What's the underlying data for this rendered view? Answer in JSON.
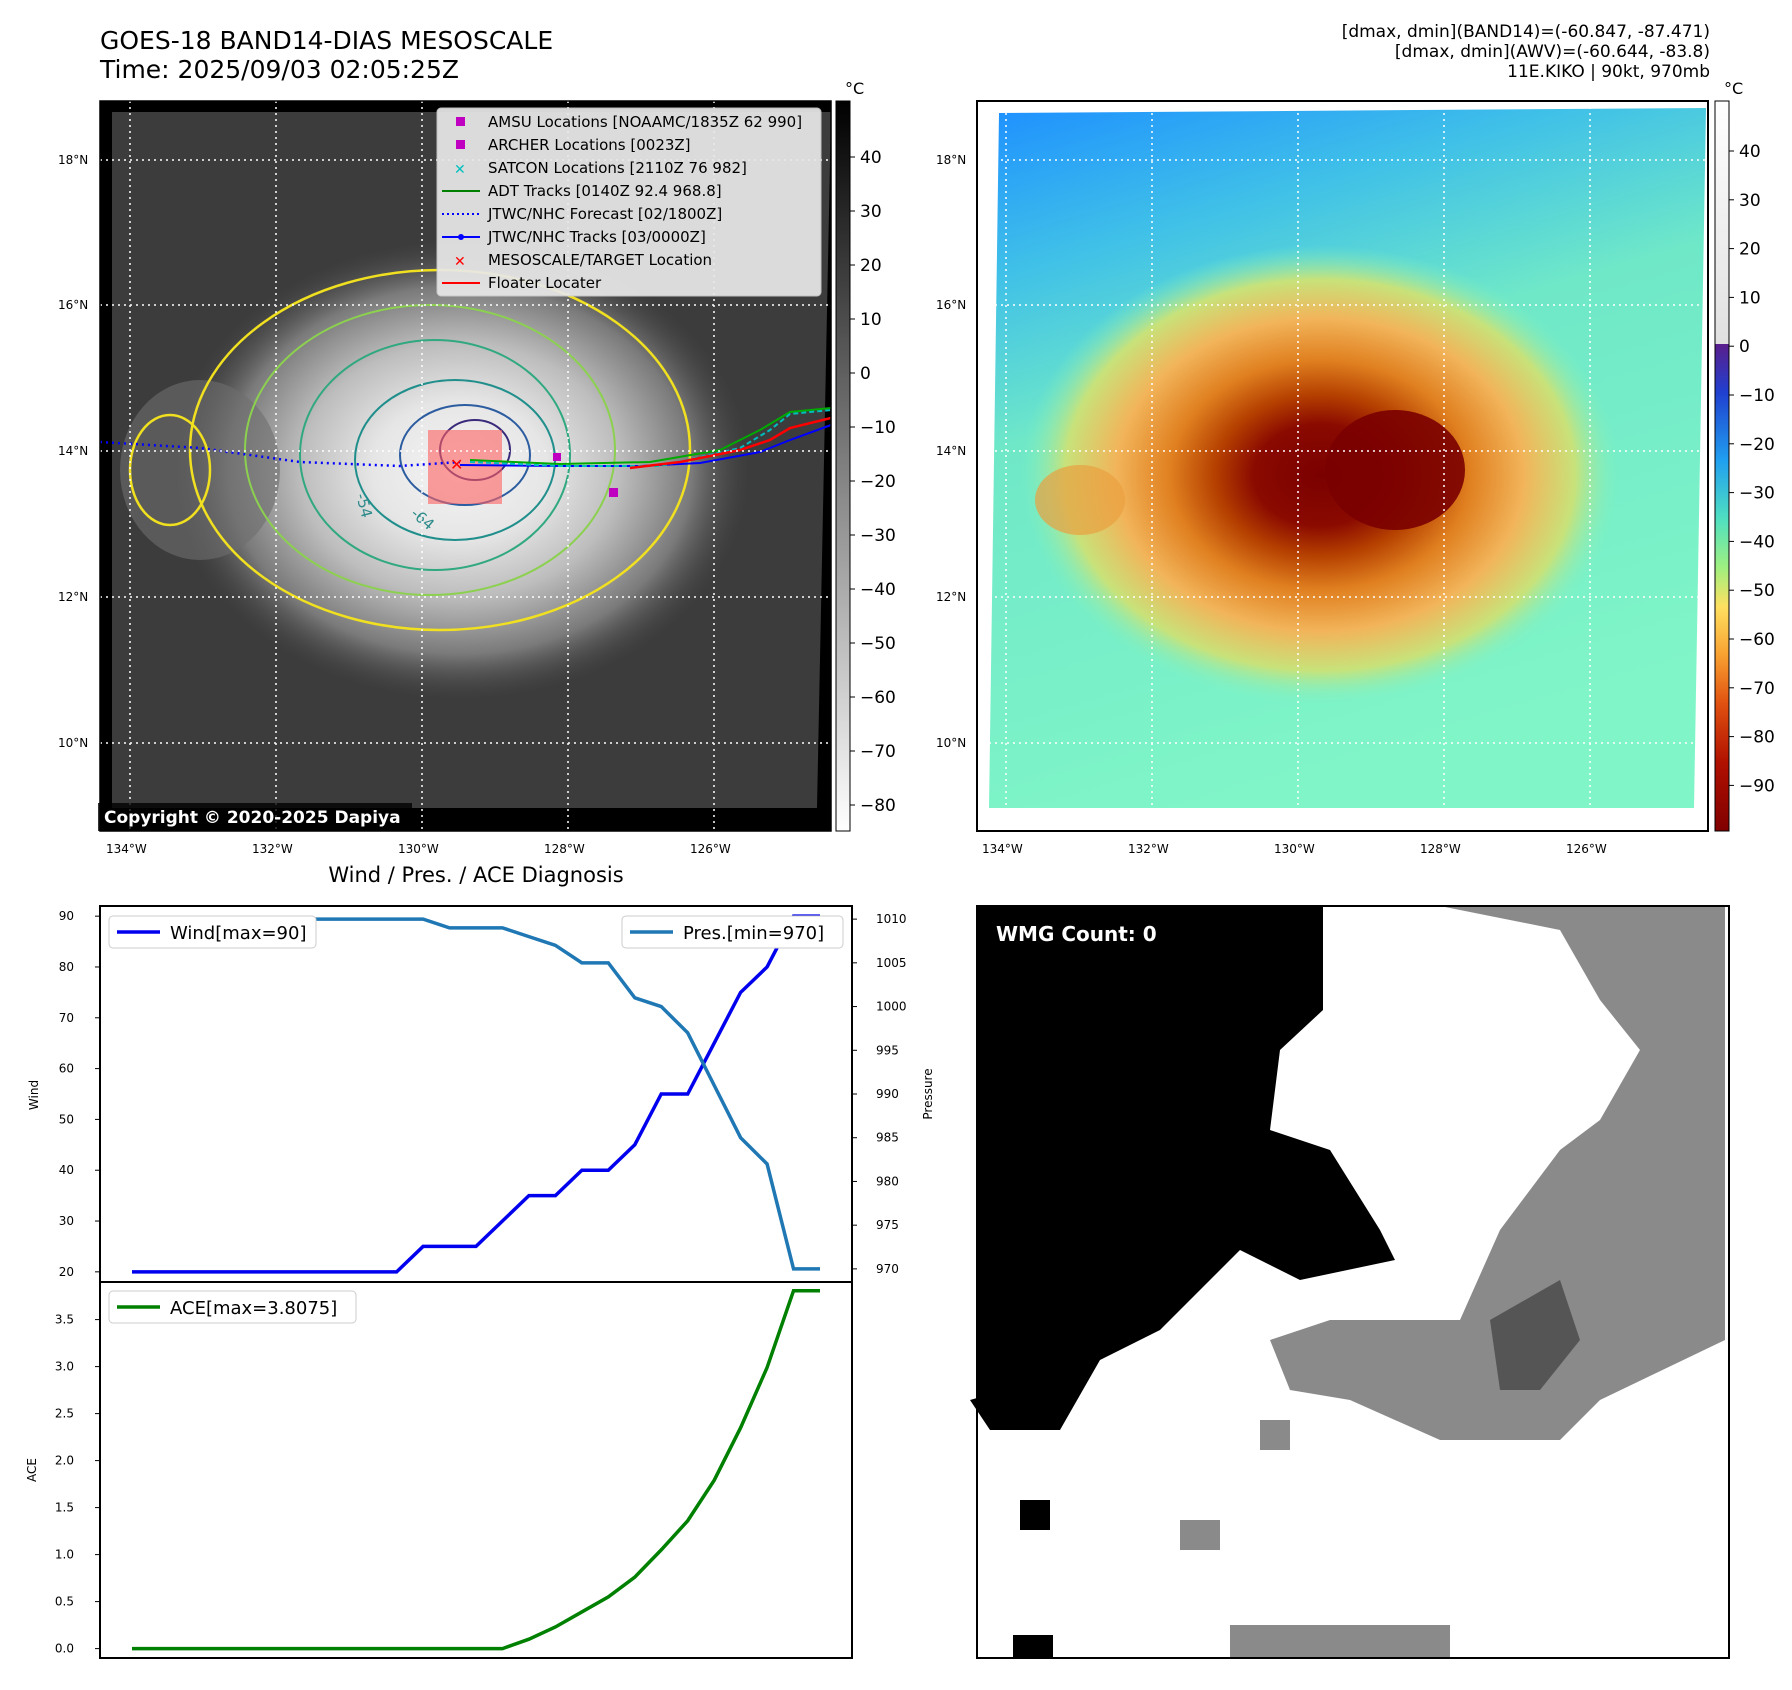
{
  "header": {
    "title_line1": "GOES-18 BAND14-DIAS MESOSCALE",
    "title_line2": "Time: 2025/09/03 02:05:25Z",
    "right_line1": "[dmax, dmin](BAND14)=(-60.847, -87.471)",
    "right_line2": "[dmax, dmin](AWV)=(-60.644, -83.8)",
    "right_line3": "11E.KIKO | 90kt, 970mb"
  },
  "map_ticks": {
    "lat": [
      "18°N",
      "16°N",
      "14°N",
      "12°N",
      "10°N"
    ],
    "lon": [
      "134°W",
      "132°W",
      "130°W",
      "128°W",
      "126°W"
    ]
  },
  "ir_panel": {
    "colorbar_unit": "°C",
    "colorbar_ticks": [
      "40",
      "30",
      "20",
      "10",
      "0",
      "−10",
      "−20",
      "−30",
      "−40",
      "−50",
      "−60",
      "−70",
      "−80"
    ],
    "copyright": "Copyright © 2020-2025 Dapiya",
    "contour_labels": [
      "-54",
      "-64"
    ],
    "legend": [
      {
        "label": "AMSU Locations [NOAAMC/1835Z 62 990]",
        "color": "#c000c0",
        "marker": "square"
      },
      {
        "label": "ARCHER Locations [0023Z]",
        "color": "#c000c0",
        "marker": "square"
      },
      {
        "label": "SATCON Locations [2110Z 76 982]",
        "color": "#00c0c0",
        "marker": "x"
      },
      {
        "label": "ADT Tracks [0140Z 92.4 968.8]",
        "color": "#008000",
        "marker": "line"
      },
      {
        "label": "JTWC/NHC Forecast [02/1800Z]",
        "color": "#0000ff",
        "marker": "dotted"
      },
      {
        "label": "JTWC/NHC Tracks [03/0000Z]",
        "color": "#0000ff",
        "marker": "line-dot"
      },
      {
        "label": "MESOSCALE/TARGET Location",
        "color": "#ff0000",
        "marker": "x"
      },
      {
        "label": "Floater Locater",
        "color": "#ff0000",
        "marker": "line"
      }
    ]
  },
  "awv_panel": {
    "colorbar_unit": "°C",
    "colorbar_ticks": [
      "40",
      "30",
      "20",
      "10",
      "0",
      "−10",
      "−20",
      "−30",
      "−40",
      "−50",
      "−60",
      "−70",
      "−80",
      "−90"
    ]
  },
  "wmg_panel": {
    "label": "WMG Count: 0"
  },
  "chart_data": [
    {
      "type": "line",
      "title": "Wind / Pres. / ACE Diagnosis",
      "ylabel": "Wind",
      "ylabel_right": "Pressure",
      "ylim": [
        18,
        92
      ],
      "ylim_right": [
        968.5,
        1011.5
      ],
      "yticks": [
        20,
        30,
        40,
        50,
        60,
        70,
        80,
        90
      ],
      "yticks_right": [
        970,
        975,
        980,
        985,
        990,
        995,
        1000,
        1005,
        1010
      ],
      "x": [
        0,
        1,
        2,
        3,
        4,
        5,
        6,
        7,
        8,
        9,
        10,
        11,
        12,
        13,
        14,
        15,
        16,
        17,
        18,
        19,
        20,
        21,
        22,
        23,
        24,
        25,
        26
      ],
      "series": [
        {
          "name": "Wind[max=90]",
          "axis": "left",
          "color": "#0000ee",
          "values": [
            20,
            20,
            20,
            20,
            20,
            20,
            20,
            20,
            20,
            20,
            20,
            25,
            25,
            25,
            30,
            35,
            35,
            40,
            40,
            45,
            55,
            55,
            65,
            75,
            80,
            90,
            90
          ]
        },
        {
          "name": "Pres.[min=970]",
          "axis": "right",
          "color": "#1f77b4",
          "values": [
            1010,
            1010,
            1010,
            1010,
            1010,
            1010,
            1010,
            1010,
            1010,
            1010,
            1010,
            1010,
            1009,
            1009,
            1009,
            1008,
            1007,
            1005,
            1005,
            1001,
            1000,
            997,
            991,
            985,
            982,
            970,
            970
          ]
        }
      ],
      "legend": [
        "Wind[max=90]",
        "Pres.[min=970]"
      ]
    },
    {
      "type": "line",
      "ylabel": "ACE",
      "ylim": [
        -0.1,
        3.9
      ],
      "yticks": [
        0.0,
        0.5,
        1.0,
        1.5,
        2.0,
        2.5,
        3.0,
        3.5
      ],
      "x": [
        0,
        1,
        2,
        3,
        4,
        5,
        6,
        7,
        8,
        9,
        10,
        11,
        12,
        13,
        14,
        15,
        16,
        17,
        18,
        19,
        20,
        21,
        22,
        23,
        24,
        25,
        26
      ],
      "series": [
        {
          "name": "ACE[max=3.8075]",
          "color": "#008000",
          "values": [
            0,
            0,
            0,
            0,
            0,
            0,
            0,
            0,
            0,
            0,
            0,
            0,
            0,
            0,
            0,
            0.1,
            0.23,
            0.39,
            0.55,
            0.76,
            1.05,
            1.36,
            1.79,
            2.35,
            2.99,
            3.8075,
            3.8075
          ]
        }
      ],
      "legend": [
        "ACE[max=3.8075]"
      ]
    }
  ]
}
